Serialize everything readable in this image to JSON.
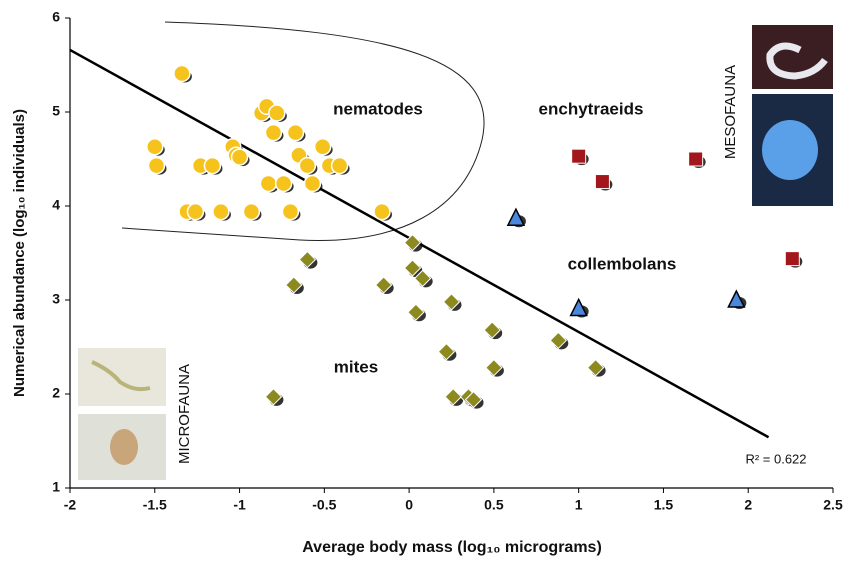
{
  "chart_data": {
    "type": "scatter",
    "xlabel": "Average body mass (log₁₀ micrograms)",
    "ylabel": "Numerical abundance (log₁₀ individuals)",
    "xlim": [
      -2,
      2.5
    ],
    "xticks": [
      -2,
      -1.5,
      -1,
      -0.5,
      0,
      0.5,
      1,
      1.5,
      2,
      2.5
    ],
    "ylim": [
      1,
      6
    ],
    "yticks": [
      1,
      2,
      3,
      4,
      5,
      6
    ],
    "grid": false,
    "series": [
      {
        "name": "nematodes",
        "color": "#f6c21c",
        "marker": "circle",
        "x": [
          -1.34,
          -1.5,
          -1.49,
          -1.23,
          -1.16,
          -1.31,
          -1.26,
          -1.11,
          -1.04,
          -1.02,
          -1.0,
          -0.93,
          -0.87,
          -0.84,
          -0.78,
          -0.8,
          -0.83,
          -0.74,
          -0.67,
          -0.65,
          -0.6,
          -0.57,
          -0.7,
          -0.51,
          -0.47,
          -0.41,
          -0.16
        ],
        "values": [
          5.41,
          4.63,
          4.43,
          4.43,
          4.43,
          3.94,
          3.94,
          3.94,
          4.63,
          4.54,
          4.52,
          3.94,
          4.99,
          5.06,
          4.99,
          4.78,
          4.24,
          4.24,
          4.78,
          4.54,
          4.43,
          4.24,
          3.94,
          4.63,
          4.43,
          4.43,
          3.94
        ]
      },
      {
        "name": "enchytraeids",
        "color": "#a3161b",
        "marker": "square",
        "x": [
          1.0,
          1.14,
          1.69,
          2.26
        ],
        "values": [
          4.53,
          4.26,
          4.5,
          3.44
        ]
      },
      {
        "name": "collembolans",
        "color": "#4a88e0",
        "marker": "triangle",
        "x": [
          0.63,
          1.0,
          1.93
        ],
        "values": [
          3.87,
          2.91,
          3.0
        ]
      },
      {
        "name": "mites",
        "color": "#8c8a1e",
        "marker": "diamond",
        "x": [
          0.02,
          -0.6,
          -0.68,
          -0.15,
          0.02,
          0.08,
          0.04,
          0.25,
          0.49,
          0.88,
          0.22,
          0.5,
          1.1,
          -0.8,
          0.26,
          0.35,
          0.38
        ],
        "values": [
          3.61,
          3.43,
          3.16,
          3.16,
          3.34,
          3.23,
          2.87,
          2.98,
          2.68,
          2.57,
          2.45,
          2.28,
          2.28,
          1.97,
          1.97,
          1.97,
          1.94
        ]
      }
    ],
    "fit": {
      "x": [
        -2,
        2.12
      ],
      "y": [
        5.66,
        1.54
      ],
      "label": "R² = 0.622"
    },
    "annotations": [
      "MESOFAUNA",
      "MICROFAUNA"
    ]
  }
}
